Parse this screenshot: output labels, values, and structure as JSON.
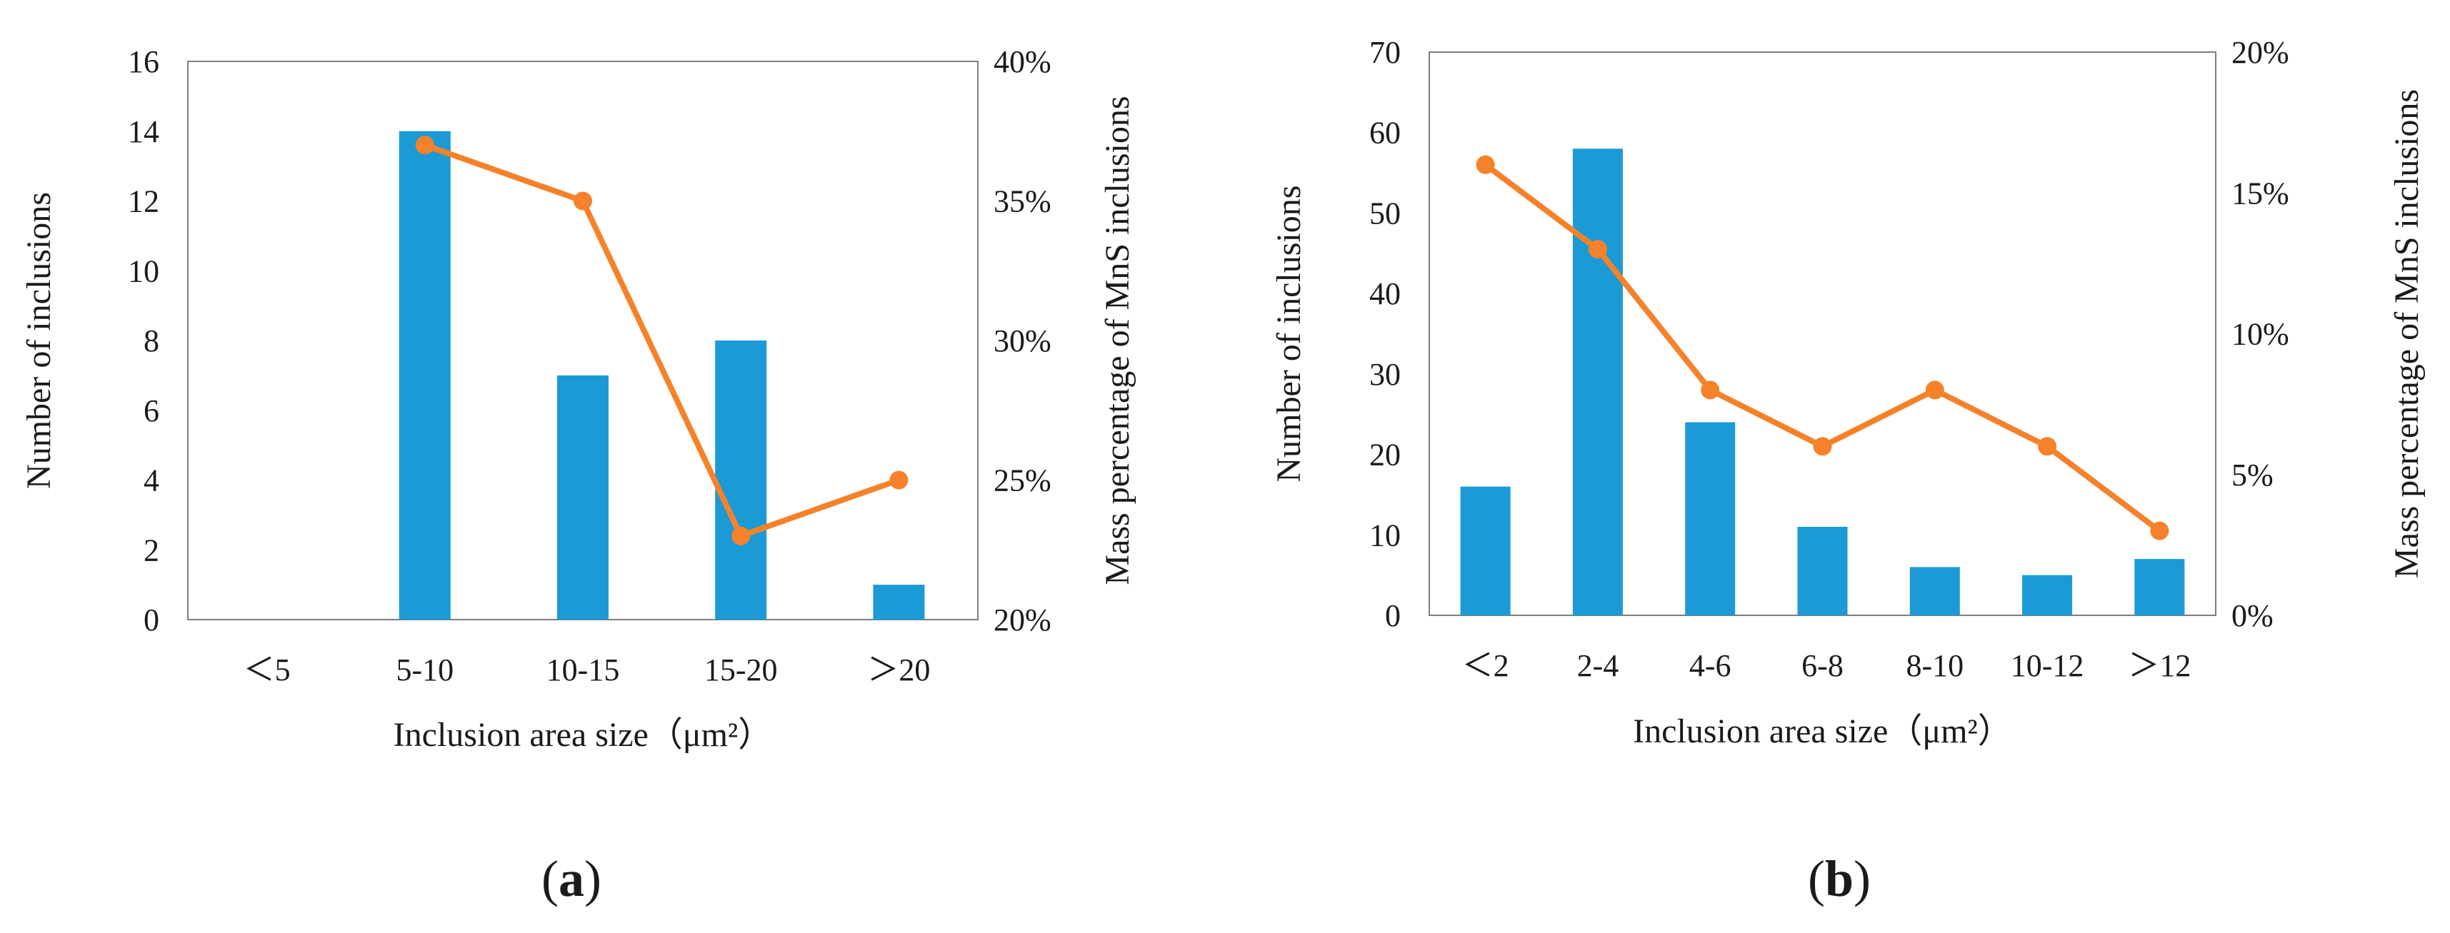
{
  "chart_data": [
    {
      "type": "bar+line",
      "panel_label": {
        "open": "(",
        "letter": "a",
        "close": ")"
      },
      "title": "",
      "xlabel": "Inclusion area size（μm²）",
      "ylabel": "Number of inclusions",
      "y2label": "Mass percentage of MnS inclusions",
      "categories": [
        "＜5",
        "5-10",
        "10-15",
        "15-20",
        "＞20"
      ],
      "ylim": [
        0,
        16
      ],
      "yticks": [
        "0",
        "2",
        "4",
        "6",
        "8",
        "10",
        "12",
        "14",
        "16"
      ],
      "y2lim": [
        20,
        40
      ],
      "y2ticks": [
        "20%",
        "25%",
        "30%",
        "35%",
        "40%"
      ],
      "series": [
        {
          "name": "Number of inclusions",
          "type": "bar",
          "axis": "left",
          "color": "#1b9ad6",
          "values": [
            0,
            14,
            7,
            8,
            1
          ]
        },
        {
          "name": "Mass percentage of MnS inclusions",
          "type": "line",
          "axis": "right",
          "color": "#f5822a",
          "values": [
            null,
            37,
            35,
            23,
            25
          ]
        }
      ],
      "grid": false,
      "legend": "none"
    },
    {
      "type": "bar+line",
      "panel_label": {
        "open": "(",
        "letter": "b",
        "close": ")"
      },
      "title": "",
      "xlabel": "Inclusion area size（μm²）",
      "ylabel": "Number of inclusions",
      "y2label": "Mass percentage of MnS inclusions",
      "categories": [
        "＜2",
        "2-4",
        "4-6",
        "6-8",
        "8-10",
        "10-12",
        "＞12"
      ],
      "ylim": [
        0,
        70
      ],
      "yticks": [
        "0",
        "10",
        "20",
        "30",
        "40",
        "50",
        "60",
        "70"
      ],
      "y2lim": [
        0,
        20
      ],
      "y2ticks": [
        "0%",
        "5%",
        "10%",
        "15%",
        "20%"
      ],
      "series": [
        {
          "name": "Number of inclusions",
          "type": "bar",
          "axis": "left",
          "color": "#1b9ad6",
          "values": [
            16,
            58,
            24,
            11,
            6,
            5,
            7
          ]
        },
        {
          "name": "Mass percentage of MnS inclusions",
          "type": "line",
          "axis": "right",
          "color": "#f5822a",
          "values": [
            16,
            13,
            8,
            6,
            8,
            6,
            3
          ]
        }
      ],
      "grid": false,
      "legend": "none"
    }
  ]
}
